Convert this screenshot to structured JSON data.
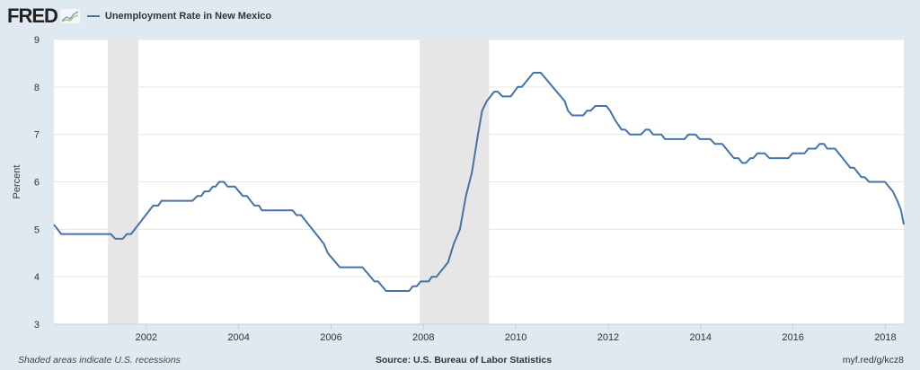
{
  "header": {
    "logo": "FRED",
    "legend_label": "Unemployment Rate in New Mexico"
  },
  "footer": {
    "note": "Shaded areas indicate U.S. recessions",
    "source": "Source: U.S. Bureau of Labor Statistics",
    "link": "myf.red/g/kcz8"
  },
  "chart_data": {
    "type": "line",
    "title": "Unemployment Rate in New Mexico",
    "xlabel": "",
    "ylabel": "Percent",
    "xlim": [
      2000.0,
      2018.4
    ],
    "ylim": [
      3,
      9
    ],
    "yticks": [
      3,
      4,
      5,
      6,
      7,
      8,
      9
    ],
    "xticks": [
      2002,
      2004,
      2006,
      2008,
      2010,
      2012,
      2014,
      2016,
      2018
    ],
    "grid": true,
    "legend": "top-left",
    "line_color": "#4572a7",
    "recessions": [
      [
        2001.17,
        2001.83
      ],
      [
        2007.92,
        2009.42
      ]
    ],
    "series": [
      {
        "name": "Unemployment Rate in New Mexico",
        "x": [
          2000.0,
          2000.16,
          2001.23,
          2001.33,
          2001.49,
          2001.58,
          2001.67,
          2002.15,
          2002.26,
          2002.33,
          2003.0,
          2003.1,
          2003.19,
          2003.26,
          2003.36,
          2003.44,
          2003.5,
          2003.58,
          2003.68,
          2003.76,
          2003.92,
          2004.09,
          2004.18,
          2004.34,
          2004.44,
          2004.5,
          2005.17,
          2005.25,
          2005.35,
          2005.84,
          2005.93,
          2006.19,
          2006.68,
          2006.94,
          2007.02,
          2007.19,
          2007.69,
          2007.77,
          2007.86,
          2007.94,
          2008.11,
          2008.18,
          2008.28,
          2008.53,
          2008.66,
          2008.79,
          2008.92,
          2009.05,
          2009.18,
          2009.27,
          2009.37,
          2009.53,
          2009.61,
          2009.71,
          2009.89,
          2010.04,
          2010.13,
          2010.38,
          2010.54,
          2011.06,
          2011.13,
          2011.22,
          2011.46,
          2011.54,
          2011.62,
          2011.72,
          2011.96,
          2012.04,
          2012.15,
          2012.29,
          2012.37,
          2012.47,
          2012.71,
          2012.81,
          2012.89,
          2012.97,
          2013.15,
          2013.23,
          2013.65,
          2013.74,
          2013.89,
          2013.98,
          2014.21,
          2014.31,
          2014.47,
          2014.72,
          2014.82,
          2014.9,
          2014.98,
          2015.08,
          2015.14,
          2015.23,
          2015.39,
          2015.49,
          2015.9,
          2015.99,
          2016.25,
          2016.33,
          2016.49,
          2016.58,
          2016.67,
          2016.74,
          2016.91,
          2017.24,
          2017.32,
          2017.48,
          2017.55,
          2017.65,
          2017.99,
          2018.16,
          2018.26,
          2018.34,
          2018.4
        ],
        "y": [
          5.1,
          4.9,
          4.9,
          4.8,
          4.8,
          4.9,
          4.9,
          5.5,
          5.5,
          5.6,
          5.6,
          5.7,
          5.7,
          5.8,
          5.8,
          5.9,
          5.9,
          6.0,
          6.0,
          5.9,
          5.9,
          5.7,
          5.7,
          5.5,
          5.5,
          5.4,
          5.4,
          5.3,
          5.3,
          4.7,
          4.5,
          4.2,
          4.2,
          3.9,
          3.9,
          3.7,
          3.7,
          3.8,
          3.8,
          3.9,
          3.9,
          4.0,
          4.0,
          4.3,
          4.7,
          5.0,
          5.7,
          6.2,
          7.0,
          7.5,
          7.7,
          7.9,
          7.9,
          7.8,
          7.8,
          8.0,
          8.0,
          8.3,
          8.3,
          7.7,
          7.5,
          7.4,
          7.4,
          7.5,
          7.5,
          7.6,
          7.6,
          7.5,
          7.3,
          7.1,
          7.1,
          7.0,
          7.0,
          7.1,
          7.1,
          7.0,
          7.0,
          6.9,
          6.9,
          7.0,
          7.0,
          6.9,
          6.9,
          6.8,
          6.8,
          6.5,
          6.5,
          6.4,
          6.4,
          6.5,
          6.5,
          6.6,
          6.6,
          6.5,
          6.5,
          6.6,
          6.6,
          6.7,
          6.7,
          6.8,
          6.8,
          6.7,
          6.7,
          6.3,
          6.3,
          6.1,
          6.1,
          6.0,
          6.0,
          5.8,
          5.6,
          5.4,
          5.1
        ]
      }
    ]
  }
}
